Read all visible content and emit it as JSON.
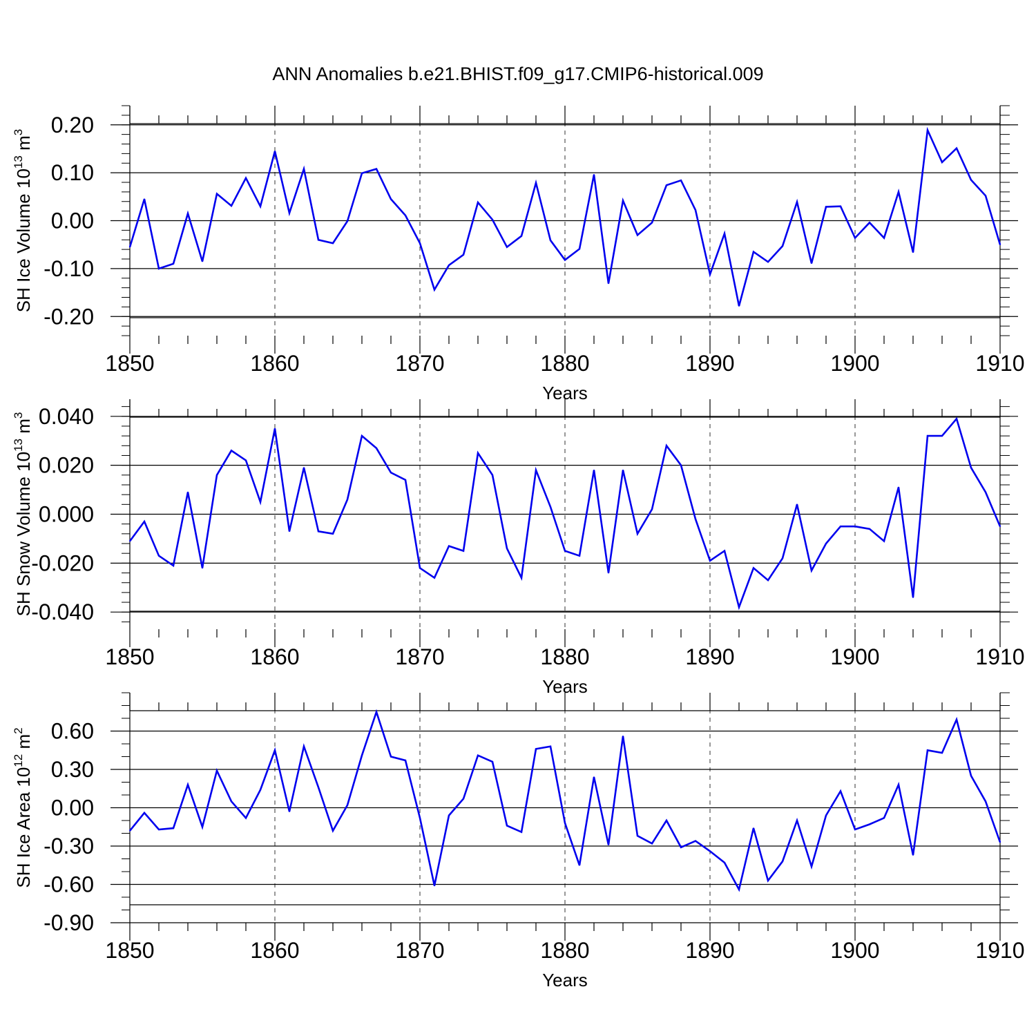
{
  "title": "ANN Anomalies b.e21.BHIST.f09_g17.CMIP6-historical.009",
  "series_color": "#0000ee",
  "chart_data": [
    {
      "type": "line",
      "ylabel": "SH Ice Volume 10",
      "ylabel_exp": "13",
      "ylabel_unit": " m",
      "ylabel_unit_exp": "3",
      "xlabel": "Years",
      "xlim": [
        1850,
        1910
      ],
      "ylim": [
        -0.24,
        0.24
      ],
      "x_ticks": [
        1850,
        1860,
        1870,
        1880,
        1890,
        1900,
        1910
      ],
      "x_tick_labels": [
        "1850",
        "1860",
        "1870",
        "1880",
        "1890",
        "1900",
        "1910"
      ],
      "y_ticks": [
        0.2,
        0.1,
        0.0,
        -0.1,
        -0.2
      ],
      "y_tick_labels": [
        "0.20",
        "0.10",
        "0.00",
        "-0.10",
        "-0.20"
      ],
      "y_minor_step": 0.02,
      "x_start": 1850,
      "values": [
        -0.055,
        0.045,
        -0.1,
        -0.09,
        0.015,
        -0.085,
        0.056,
        0.031,
        0.089,
        0.03,
        0.145,
        0.016,
        0.108,
        -0.04,
        -0.047,
        -0.001,
        0.099,
        0.108,
        0.045,
        0.011,
        -0.047,
        -0.144,
        -0.093,
        -0.071,
        0.038,
        0.002,
        -0.055,
        -0.032,
        0.079,
        -0.041,
        -0.082,
        -0.059,
        0.096,
        -0.131,
        0.042,
        -0.03,
        -0.004,
        0.074,
        0.084,
        0.022,
        -0.112,
        -0.027,
        -0.178,
        -0.065,
        -0.086,
        -0.053,
        0.039,
        -0.089,
        0.029,
        0.03,
        -0.036,
        -0.004,
        -0.036,
        0.06,
        -0.066,
        0.189,
        0.122,
        0.151,
        0.085,
        0.052,
        -0.05
      ]
    },
    {
      "type": "line",
      "ylabel": "SH Snow Volume 10",
      "ylabel_exp": "13",
      "ylabel_unit": " m",
      "ylabel_unit_exp": "3",
      "xlabel": "Years",
      "xlim": [
        1850,
        1910
      ],
      "ylim": [
        -0.047,
        0.047
      ],
      "x_ticks": [
        1850,
        1860,
        1870,
        1880,
        1890,
        1900,
        1910
      ],
      "x_tick_labels": [
        "1850",
        "1860",
        "1870",
        "1880",
        "1890",
        "1900",
        "1910"
      ],
      "y_ticks": [
        0.04,
        0.02,
        0.0,
        -0.02,
        -0.04
      ],
      "y_tick_labels": [
        "0.040",
        "0.020",
        "0.000",
        "-0.020",
        "-0.040"
      ],
      "y_minor_step": 0.004,
      "x_start": 1850,
      "values": [
        -0.011,
        -0.003,
        -0.017,
        -0.021,
        0.009,
        -0.022,
        0.016,
        0.026,
        0.022,
        0.005,
        0.035,
        -0.007,
        0.019,
        -0.007,
        -0.008,
        0.006,
        0.032,
        0.027,
        0.017,
        0.014,
        -0.022,
        -0.026,
        -0.013,
        -0.015,
        0.025,
        0.016,
        -0.014,
        -0.026,
        0.018,
        0.003,
        -0.015,
        -0.017,
        0.018,
        -0.024,
        0.018,
        -0.008,
        0.002,
        0.028,
        0.02,
        -0.002,
        -0.019,
        -0.015,
        -0.038,
        -0.022,
        -0.027,
        -0.018,
        0.004,
        -0.023,
        -0.012,
        -0.005,
        -0.005,
        -0.006,
        -0.011,
        0.011,
        -0.034,
        0.032,
        0.032,
        0.039,
        0.019,
        0.009,
        -0.005
      ]
    },
    {
      "type": "line",
      "ylabel": "SH Ice Area 10",
      "ylabel_exp": "12",
      "ylabel_unit": " m",
      "ylabel_unit_exp": "2",
      "xlabel": "Years",
      "xlim": [
        1850,
        1910
      ],
      "ylim": [
        -0.9,
        0.9
      ],
      "x_ticks": [
        1850,
        1860,
        1870,
        1880,
        1890,
        1900,
        1910
      ],
      "x_tick_labels": [
        "1850",
        "1860",
        "1870",
        "1880",
        "1890",
        "1900",
        "1910"
      ],
      "y_ticks": [
        0.6,
        0.3,
        0.0,
        -0.3,
        -0.6,
        -0.9
      ],
      "y_tick_labels": [
        "0.60",
        "0.30",
        "0.00",
        "-0.30",
        "-0.60",
        "-0.90"
      ],
      "y_minor_step": 0.1,
      "x_start": 1850,
      "values": [
        -0.18,
        -0.04,
        -0.17,
        -0.16,
        0.18,
        -0.15,
        0.29,
        0.05,
        -0.08,
        0.14,
        0.45,
        -0.03,
        0.48,
        0.16,
        -0.18,
        0.02,
        0.41,
        0.75,
        0.4,
        0.37,
        -0.08,
        -0.61,
        -0.06,
        0.07,
        0.41,
        0.36,
        -0.14,
        -0.19,
        0.46,
        0.48,
        -0.12,
        -0.45,
        0.24,
        -0.29,
        0.56,
        -0.22,
        -0.28,
        -0.1,
        -0.31,
        -0.26,
        -0.34,
        -0.43,
        -0.64,
        -0.16,
        -0.57,
        -0.42,
        -0.1,
        -0.46,
        -0.06,
        0.13,
        -0.17,
        -0.13,
        -0.08,
        0.18,
        -0.37,
        0.45,
        0.43,
        0.69,
        0.25,
        0.05,
        -0.27
      ]
    }
  ]
}
